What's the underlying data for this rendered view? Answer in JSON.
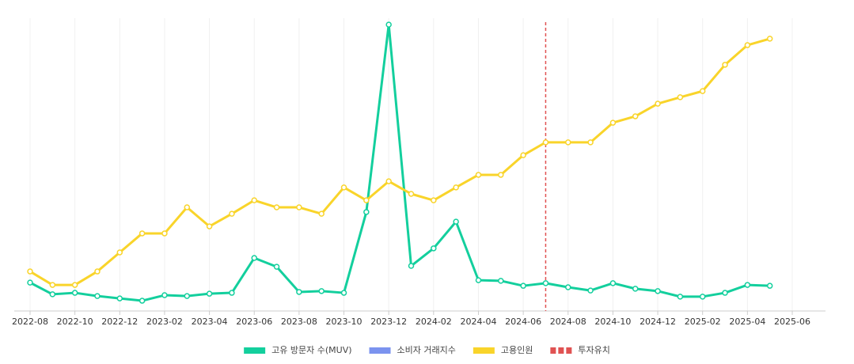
{
  "chart_data": {
    "type": "line",
    "x": [
      "2022-08",
      "2022-09",
      "2022-10",
      "2022-11",
      "2022-12",
      "2023-01",
      "2023-02",
      "2023-03",
      "2023-04",
      "2023-05",
      "2023-06",
      "2023-07",
      "2023-08",
      "2023-09",
      "2023-10",
      "2023-11",
      "2023-12",
      "2024-01",
      "2024-02",
      "2024-03",
      "2024-04",
      "2024-05",
      "2024-06",
      "2024-07",
      "2024-08",
      "2024-09",
      "2024-10",
      "2024-11",
      "2024-12",
      "2025-01",
      "2025-02",
      "2025-03",
      "2025-04",
      "2025-05"
    ],
    "series": [
      {
        "name": "고유 방문자 수(MUV)",
        "color": "#13cf9d",
        "values": [
          9.7,
          5.7,
          6.2,
          5.1,
          4.3,
          3.5,
          5.4,
          5.1,
          5.9,
          6.2,
          18.1,
          15.1,
          6.5,
          6.8,
          6.2,
          33.8,
          97.8,
          15.4,
          21.4,
          30.5,
          10.5,
          10.3,
          8.6,
          9.5,
          8.1,
          7.0,
          9.5,
          7.6,
          6.8,
          4.9,
          4.9,
          6.2,
          8.9,
          8.6
        ]
      },
      {
        "name": "소비자 거래지수",
        "color": "#7b93ef",
        "values": [
          null,
          null,
          null,
          null,
          null,
          null,
          null,
          null,
          null,
          null,
          null,
          null,
          null,
          null,
          null,
          null,
          null,
          null,
          null,
          null,
          null,
          null,
          null,
          null,
          null,
          null,
          null,
          null,
          null,
          null,
          null,
          null,
          null,
          null
        ]
      },
      {
        "name": "고용인원",
        "color": "#f9d42a",
        "values": [
          13.5,
          8.9,
          8.9,
          13.5,
          20,
          26.5,
          26.5,
          35.4,
          28.9,
          33.2,
          37.8,
          35.4,
          35.4,
          33.2,
          42.2,
          37.8,
          44.3,
          40,
          37.8,
          42.2,
          46.5,
          46.5,
          53.2,
          57.6,
          57.6,
          57.6,
          64.3,
          66.5,
          70.8,
          73,
          75.1,
          84.1,
          90.8,
          93
        ]
      }
    ],
    "marker": {
      "name": "투자유치",
      "x": "2024-07",
      "color": "#e05252"
    },
    "xlim": [
      "2022-08",
      "2025-06"
    ],
    "xticks": [
      "2022-08",
      "2022-10",
      "2022-12",
      "2023-02",
      "2023-04",
      "2023-06",
      "2023-08",
      "2023-10",
      "2023-12",
      "2024-02",
      "2024-04",
      "2024-06",
      "2024-08",
      "2024-10",
      "2024-12",
      "2025-02",
      "2025-04",
      "2025-06"
    ],
    "ylim": [
      0,
      100
    ],
    "grid": true
  }
}
